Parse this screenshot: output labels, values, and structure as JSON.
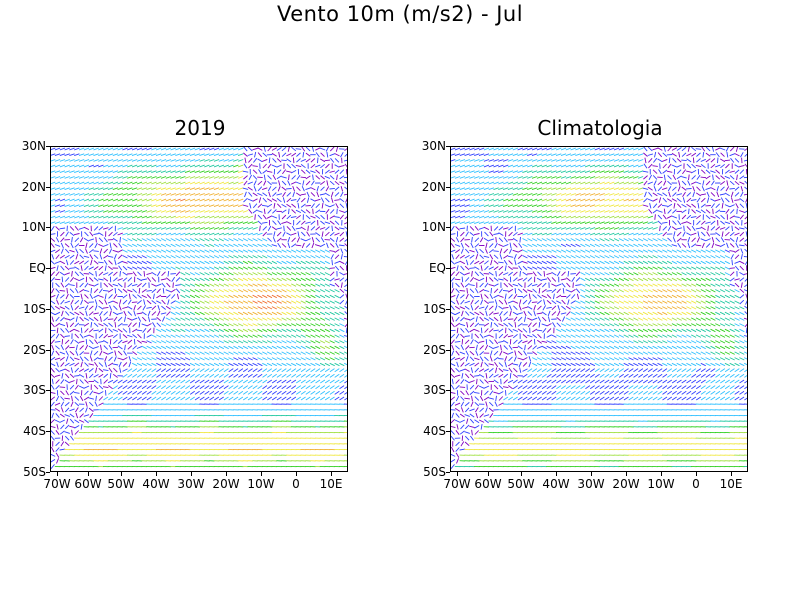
{
  "title": "Vento 10m (m/s2) - Jul",
  "panels": [
    {
      "title": "2019"
    },
    {
      "title": "Climatologia"
    }
  ],
  "axes": {
    "lat_labels": [
      "30N",
      "20N",
      "10N",
      "EQ",
      "10S",
      "20S",
      "30S",
      "40S",
      "50S"
    ],
    "lon_labels": [
      "70W",
      "60W",
      "50W",
      "40W",
      "30W",
      "20W",
      "10W",
      "0",
      "10E"
    ]
  },
  "chart_data": {
    "type": "heatmap",
    "map_kind": "wind-vector field (colored arrows)",
    "xlim": [
      -72,
      14
    ],
    "ylim": [
      -50,
      30
    ],
    "x_ticks": [
      -70,
      -60,
      -50,
      -40,
      -30,
      -20,
      -10,
      0,
      10
    ],
    "y_ticks": [
      30,
      20,
      10,
      0,
      -10,
      -20,
      -30,
      -40,
      -50
    ],
    "grid": false,
    "color_scale": [
      "#8000c0",
      "#3040ff",
      "#30c0ff",
      "#20c8a0",
      "#30d020",
      "#a0e040",
      "#f0e840",
      "#f0b030",
      "#f07030",
      "#ff2020"
    ],
    "panels": [
      {
        "name": "2019",
        "peak_region_color": "#ff2020"
      },
      {
        "name": "Climatologia",
        "peak_region_color": "#f0b030"
      }
    ]
  }
}
